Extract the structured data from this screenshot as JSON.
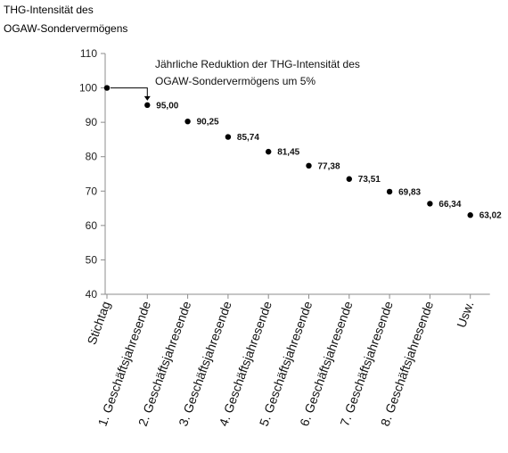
{
  "chart_data": {
    "type": "scatter",
    "y_title_lines": [
      "THG-Intensität des",
      "OGAW-Sondervermögens"
    ],
    "categories": [
      "Stichtag",
      "1. Geschäftsjahresende",
      "2. Geschäftsjahresende",
      "3. Geschäftsjahresende",
      "4. Geschäftsjahresende",
      "5. Geschäftsjahresende",
      "6. Geschäftsjahresende",
      "7. Geschäftsjahresende",
      "8. Geschäftsjahresende",
      "Usw."
    ],
    "values": [
      100,
      95.0,
      90.25,
      85.74,
      81.45,
      77.38,
      73.51,
      69.83,
      66.34,
      63.02
    ],
    "data_labels": [
      "",
      "95,00",
      "90,25",
      "85,74",
      "81,45",
      "77,38",
      "73,51",
      "69,83",
      "66,34",
      "63,02"
    ],
    "ylim": [
      40,
      110
    ],
    "yticks": [
      40,
      50,
      60,
      70,
      80,
      90,
      100,
      110
    ],
    "annotation_lines": [
      "Jährliche Reduktion der THG-Intensität des",
      "OGAW-Sondervermögens um 5%"
    ],
    "grid": false,
    "marker_color": "#000000"
  }
}
